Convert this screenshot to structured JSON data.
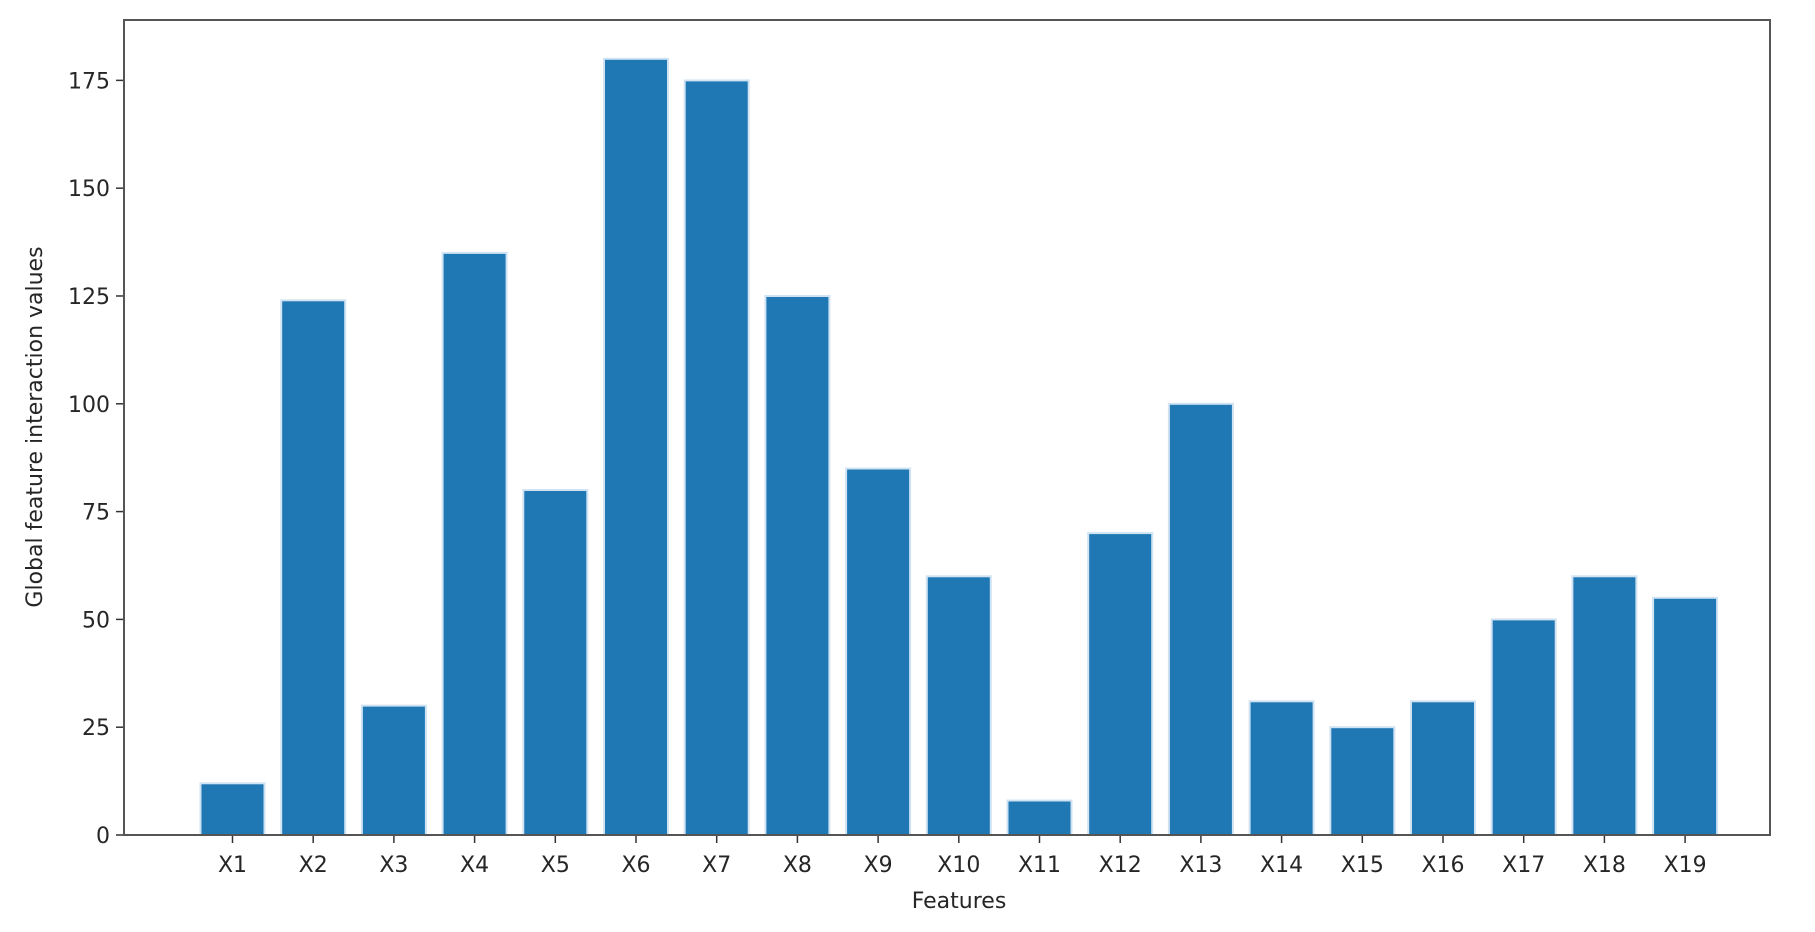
{
  "chart_data": {
    "type": "bar",
    "title": "",
    "xlabel": "Features",
    "ylabel": "Global feature interaction values",
    "categories": [
      "X1",
      "X2",
      "X3",
      "X4",
      "X5",
      "X6",
      "X7",
      "X8",
      "X9",
      "X10",
      "X11",
      "X12",
      "X13",
      "X14",
      "X15",
      "X16",
      "X17",
      "X18",
      "X19"
    ],
    "values": [
      12,
      124,
      30,
      135,
      80,
      180,
      175,
      125,
      85,
      60,
      8,
      70,
      100,
      31,
      25,
      31,
      50,
      60,
      55
    ],
    "ylim": [
      0,
      189
    ],
    "yticks": [
      0,
      25,
      50,
      75,
      100,
      125,
      150,
      175
    ],
    "grid": false,
    "bar_color": "#1f77b4",
    "bar_edge_color": "#cfe3f3"
  }
}
